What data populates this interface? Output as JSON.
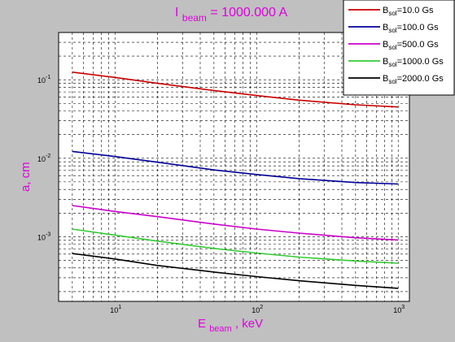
{
  "chart_data": {
    "type": "line",
    "title": {
      "main": "I",
      "sub": "beam",
      "rest": " = 1000.000 A"
    },
    "xlabel": {
      "main": "E",
      "sub": "beam",
      "rest": ", keV"
    },
    "ylabel": "a, cm",
    "x_scale": "log",
    "y_scale": "log",
    "xlim": [
      4,
      1200
    ],
    "ylim": [
      0.00015,
      0.4
    ],
    "grid": true,
    "legend_position": "top-right",
    "x_ticks": [
      {
        "value": 10,
        "base": "10",
        "exp": "1"
      },
      {
        "value": 100,
        "base": "10",
        "exp": "2"
      },
      {
        "value": 1000,
        "base": "10",
        "exp": "3"
      }
    ],
    "y_ticks": [
      {
        "value": 0.1,
        "base": "10",
        "exp": "-1"
      },
      {
        "value": 0.01,
        "base": "10",
        "exp": "-2"
      },
      {
        "value": 0.001,
        "base": "10",
        "exp": "-3"
      }
    ],
    "x": [
      5,
      10,
      20,
      50,
      100,
      200,
      500,
      1000
    ],
    "series": [
      {
        "label_main": "B",
        "label_sub": "sol",
        "label_rest": "=10.0 Gs",
        "color": "#cc0000",
        "values": [
          0.125,
          0.107,
          0.09,
          0.073,
          0.063,
          0.055,
          0.048,
          0.045
        ]
      },
      {
        "label_main": "B",
        "label_sub": "sol",
        "label_rest": "=100.0 Gs",
        "color": "#000099",
        "values": [
          0.0122,
          0.0105,
          0.0089,
          0.0071,
          0.0062,
          0.0055,
          0.0049,
          0.0047
        ]
      },
      {
        "label_main": "B",
        "label_sub": "sol",
        "label_rest": "=500.0 Gs",
        "color": "#cc00cc",
        "values": [
          0.0025,
          0.0021,
          0.0018,
          0.00145,
          0.00125,
          0.00111,
          0.00097,
          0.00091
        ]
      },
      {
        "label_main": "B",
        "label_sub": "sol",
        "label_rest": "=1000.0 Gs",
        "color": "#33cc33",
        "values": [
          0.00125,
          0.00105,
          0.00088,
          0.00071,
          0.00062,
          0.00055,
          0.00049,
          0.00046
        ]
      },
      {
        "label_main": "B",
        "label_sub": "sol",
        "label_rest": "=2000.0 Gs",
        "color": "#000000",
        "values": [
          0.00061,
          0.00052,
          0.00043,
          0.000355,
          0.00031,
          0.000275,
          0.00024,
          0.00022
        ]
      }
    ]
  }
}
